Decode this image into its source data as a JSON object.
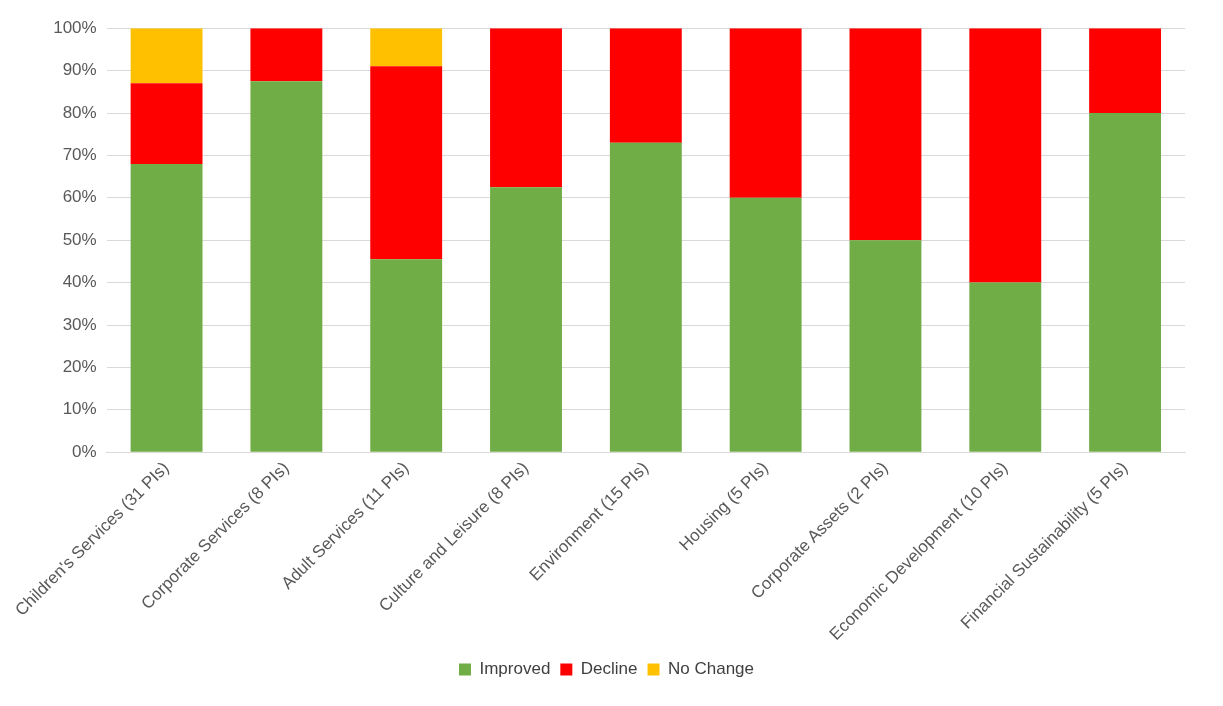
{
  "chart_data": {
    "type": "bar",
    "stacked": true,
    "categories": [
      "Children's Services (31 PIs)",
      "Corporate Services (8 PIs)",
      "Adult Services (11 PIs)",
      "Culture and Leisure (8 PIs)",
      "Environment (15 PIs)",
      "Housing (5 PIs)",
      "Corporate Assets (2 PIs)",
      "Economic Development (10 PIs)",
      "Financial Sustainability (5 PIs)"
    ],
    "series": [
      {
        "name": "Improved",
        "color": "#70ad47",
        "values": [
          68,
          87.5,
          45.5,
          62.5,
          73,
          60,
          50,
          40,
          80
        ]
      },
      {
        "name": "Decline",
        "color": "#ff0000",
        "values": [
          19,
          12.5,
          45.5,
          37.5,
          27,
          40,
          50,
          60,
          20
        ]
      },
      {
        "name": "No Change",
        "color": "#ffc000",
        "values": [
          13,
          null,
          9,
          null,
          null,
          null,
          null,
          null,
          null
        ]
      }
    ],
    "ylim": [
      0,
      100
    ],
    "yticks": [
      {
        "value": 0,
        "label": "0%"
      },
      {
        "value": 10,
        "label": "10%"
      },
      {
        "value": 20,
        "label": "20%"
      },
      {
        "value": 30,
        "label": "30%"
      },
      {
        "value": 40,
        "label": "40%"
      },
      {
        "value": 50,
        "label": "50%"
      },
      {
        "value": 60,
        "label": "60%"
      },
      {
        "value": 70,
        "label": "70%"
      },
      {
        "value": 80,
        "label": "80%"
      },
      {
        "value": 90,
        "label": "90%"
      },
      {
        "value": 100,
        "label": "100%"
      }
    ],
    "grid": "y",
    "legend": "bottom"
  }
}
